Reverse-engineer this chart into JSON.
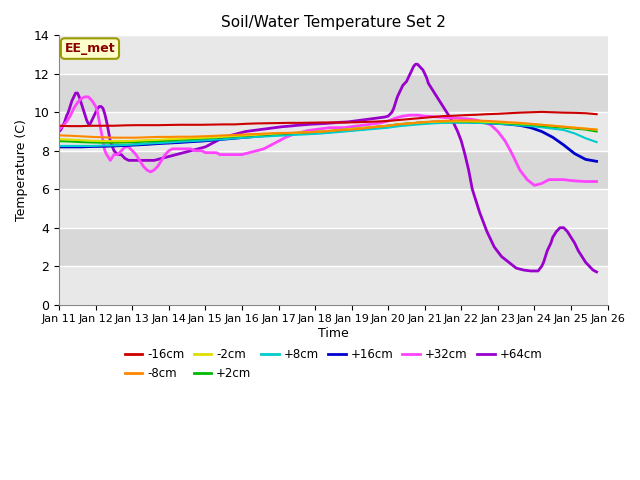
{
  "title": "Soil/Water Temperature Set 2",
  "xlabel": "Time",
  "ylabel": "Temperature (C)",
  "xlim": [
    0,
    15
  ],
  "ylim": [
    0,
    14
  ],
  "yticks": [
    0,
    2,
    4,
    6,
    8,
    10,
    12,
    14
  ],
  "xtick_labels": [
    "Jan 11",
    "Jan 12",
    "Jan 13",
    "Jan 14",
    "Jan 15",
    "Jan 16",
    "Jan 17",
    "Jan 18",
    "Jan 19",
    "Jan 20",
    "Jan 21",
    "Jan 22",
    "Jan 23",
    "Jan 24",
    "Jan 25",
    "Jan 26"
  ],
  "station_label": "EE_met",
  "legend": [
    {
      "label": "-16cm",
      "color": "#cc0000"
    },
    {
      "label": "-8cm",
      "color": "#ff8800"
    },
    {
      "label": "-2cm",
      "color": "#dddd00"
    },
    {
      "label": "+2cm",
      "color": "#00bb00"
    },
    {
      "label": "+8cm",
      "color": "#00cccc"
    },
    {
      "label": "+16cm",
      "color": "#0000cc"
    },
    {
      "label": "+32cm",
      "color": "#ff44ff"
    },
    {
      "label": "+64cm",
      "color": "#9900cc"
    }
  ],
  "series": {
    "m16cm": {
      "color": "#cc0000",
      "x": [
        0,
        0.3,
        0.6,
        0.9,
        1.2,
        1.5,
        1.8,
        2.1,
        2.4,
        2.7,
        3,
        3.3,
        3.6,
        3.9,
        4.2,
        4.5,
        4.8,
        5.1,
        5.4,
        5.7,
        6,
        6.3,
        6.6,
        6.9,
        7.2,
        7.5,
        7.8,
        8.1,
        8.4,
        8.7,
        9,
        9.3,
        9.6,
        9.9,
        10.2,
        10.5,
        10.8,
        11.1,
        11.4,
        11.7,
        12,
        12.3,
        12.6,
        12.9,
        13.2,
        13.5,
        13.8,
        14.1,
        14.4,
        14.7
      ],
      "y": [
        9.3,
        9.28,
        9.28,
        9.3,
        9.3,
        9.3,
        9.32,
        9.33,
        9.33,
        9.33,
        9.34,
        9.35,
        9.35,
        9.35,
        9.36,
        9.37,
        9.37,
        9.4,
        9.42,
        9.43,
        9.44,
        9.45,
        9.45,
        9.46,
        9.47,
        9.47,
        9.47,
        9.48,
        9.5,
        9.52,
        9.55,
        9.6,
        9.65,
        9.7,
        9.75,
        9.8,
        9.82,
        9.85,
        9.87,
        9.9,
        9.92,
        9.95,
        9.98,
        10.0,
        10.02,
        10.0,
        9.98,
        9.97,
        9.95,
        9.9
      ]
    },
    "m8cm": {
      "color": "#ff8800",
      "x": [
        0,
        0.3,
        0.6,
        0.9,
        1.2,
        1.5,
        1.8,
        2.1,
        2.4,
        2.7,
        3,
        3.3,
        3.6,
        3.9,
        4.2,
        4.5,
        4.8,
        5.1,
        5.4,
        5.7,
        6,
        6.3,
        6.6,
        6.9,
        7.2,
        7.5,
        7.8,
        8.1,
        8.4,
        8.7,
        9,
        9.3,
        9.6,
        9.9,
        10.2,
        10.5,
        10.8,
        11.1,
        11.4,
        11.7,
        12,
        12.3,
        12.6,
        12.9,
        13.2,
        13.5,
        13.8,
        14.1,
        14.4,
        14.7
      ],
      "y": [
        8.8,
        8.78,
        8.75,
        8.72,
        8.7,
        8.68,
        8.68,
        8.68,
        8.7,
        8.72,
        8.72,
        8.73,
        8.73,
        8.75,
        8.77,
        8.8,
        8.82,
        8.85,
        8.87,
        8.9,
        8.92,
        8.93,
        8.95,
        8.97,
        9.0,
        9.05,
        9.08,
        9.12,
        9.18,
        9.25,
        9.3,
        9.38,
        9.42,
        9.48,
        9.52,
        9.55,
        9.57,
        9.58,
        9.57,
        9.55,
        9.52,
        9.48,
        9.45,
        9.4,
        9.35,
        9.3,
        9.25,
        9.2,
        9.15,
        9.1
      ]
    },
    "m2cm": {
      "color": "#dddd00",
      "x": [
        0,
        0.3,
        0.6,
        0.9,
        1.2,
        1.5,
        1.8,
        2.1,
        2.4,
        2.7,
        3,
        3.3,
        3.6,
        3.9,
        4.2,
        4.5,
        4.8,
        5.1,
        5.4,
        5.7,
        6,
        6.3,
        6.6,
        6.9,
        7.2,
        7.5,
        7.8,
        8.1,
        8.4,
        8.7,
        9,
        9.3,
        9.6,
        9.9,
        10.2,
        10.5,
        10.8,
        11.1,
        11.4,
        11.7,
        12,
        12.3,
        12.6,
        12.9,
        13.2,
        13.5,
        13.8,
        14.1,
        14.4,
        14.7
      ],
      "y": [
        8.6,
        8.58,
        8.55,
        8.52,
        8.5,
        8.5,
        8.5,
        8.52,
        8.55,
        8.57,
        8.6,
        8.62,
        8.65,
        8.67,
        8.7,
        8.73,
        8.77,
        8.8,
        8.83,
        8.87,
        8.9,
        8.92,
        8.95,
        8.97,
        9.0,
        9.05,
        9.1,
        9.15,
        9.2,
        9.25,
        9.3,
        9.38,
        9.42,
        9.47,
        9.5,
        9.52,
        9.53,
        9.53,
        9.52,
        9.5,
        9.48,
        9.45,
        9.42,
        9.38,
        9.35,
        9.3,
        9.25,
        9.2,
        9.15,
        9.1
      ]
    },
    "p2cm": {
      "color": "#00bb00",
      "x": [
        0,
        0.3,
        0.6,
        0.9,
        1.2,
        1.5,
        1.8,
        2.1,
        2.4,
        2.7,
        3,
        3.3,
        3.6,
        3.9,
        4.2,
        4.5,
        4.8,
        5.1,
        5.4,
        5.7,
        6,
        6.3,
        6.6,
        6.9,
        7.2,
        7.5,
        7.8,
        8.1,
        8.4,
        8.7,
        9,
        9.3,
        9.6,
        9.9,
        10.2,
        10.5,
        10.8,
        11.1,
        11.4,
        11.7,
        12,
        12.3,
        12.6,
        12.9,
        13.2,
        13.5,
        13.8,
        14.1,
        14.4,
        14.7
      ],
      "y": [
        8.5,
        8.48,
        8.45,
        8.43,
        8.42,
        8.42,
        8.43,
        8.45,
        8.48,
        8.5,
        8.53,
        8.57,
        8.6,
        8.63,
        8.67,
        8.7,
        8.75,
        8.78,
        8.82,
        8.85,
        8.88,
        8.91,
        8.94,
        8.97,
        9.0,
        9.05,
        9.1,
        9.15,
        9.2,
        9.25,
        9.3,
        9.38,
        9.42,
        9.47,
        9.5,
        9.52,
        9.52,
        9.52,
        9.5,
        9.48,
        9.45,
        9.42,
        9.38,
        9.35,
        9.3,
        9.25,
        9.2,
        9.15,
        9.1,
        9.0
      ]
    },
    "p8cm": {
      "color": "#00cccc",
      "x": [
        0,
        0.3,
        0.6,
        0.9,
        1.2,
        1.5,
        1.8,
        2.1,
        2.4,
        2.7,
        3,
        3.3,
        3.6,
        3.9,
        4.2,
        4.5,
        4.8,
        5.1,
        5.4,
        5.7,
        6,
        6.3,
        6.6,
        6.9,
        7.2,
        7.5,
        7.8,
        8.1,
        8.4,
        8.7,
        9,
        9.3,
        9.6,
        9.9,
        10.2,
        10.5,
        10.8,
        11.1,
        11.4,
        11.7,
        12,
        12.3,
        12.6,
        12.9,
        13.2,
        13.5,
        13.8,
        14.1,
        14.4,
        14.7
      ],
      "y": [
        8.25,
        8.25,
        8.25,
        8.25,
        8.27,
        8.28,
        8.3,
        8.33,
        8.37,
        8.4,
        8.43,
        8.47,
        8.5,
        8.53,
        8.57,
        8.6,
        8.65,
        8.68,
        8.72,
        8.75,
        8.78,
        8.81,
        8.84,
        8.87,
        8.9,
        8.95,
        9.0,
        9.05,
        9.1,
        9.15,
        9.2,
        9.28,
        9.33,
        9.38,
        9.42,
        9.45,
        9.46,
        9.46,
        9.45,
        9.43,
        9.4,
        9.37,
        9.32,
        9.28,
        9.22,
        9.15,
        9.08,
        8.9,
        8.65,
        8.45
      ]
    },
    "p16cm": {
      "color": "#0000cc",
      "x": [
        0,
        0.3,
        0.6,
        0.9,
        1.2,
        1.5,
        1.8,
        2.1,
        2.4,
        2.7,
        3,
        3.3,
        3.6,
        3.9,
        4.2,
        4.5,
        4.8,
        5.1,
        5.4,
        5.7,
        6,
        6.3,
        6.6,
        6.9,
        7.2,
        7.5,
        7.8,
        8.1,
        8.4,
        8.7,
        9,
        9.3,
        9.6,
        9.9,
        10.2,
        10.5,
        10.8,
        11.1,
        11.4,
        11.7,
        12,
        12.3,
        12.6,
        12.9,
        13.2,
        13.5,
        13.8,
        14.1,
        14.4,
        14.7
      ],
      "y": [
        8.2,
        8.2,
        8.2,
        8.22,
        8.23,
        8.25,
        8.27,
        8.3,
        8.33,
        8.37,
        8.4,
        8.43,
        8.47,
        8.5,
        8.55,
        8.6,
        8.65,
        8.7,
        8.75,
        8.8,
        8.85,
        8.88,
        8.9,
        8.93,
        8.95,
        9.0,
        9.05,
        9.1,
        9.15,
        9.22,
        9.28,
        9.35,
        9.4,
        9.45,
        9.48,
        9.5,
        9.5,
        9.5,
        9.48,
        9.45,
        9.42,
        9.38,
        9.32,
        9.2,
        9.0,
        8.7,
        8.3,
        7.85,
        7.55,
        7.45
      ]
    },
    "p32cm": {
      "color": "#ff44ff",
      "x": [
        0,
        0.1,
        0.2,
        0.3,
        0.4,
        0.5,
        0.6,
        0.7,
        0.8,
        0.9,
        1.0,
        1.05,
        1.1,
        1.15,
        1.2,
        1.25,
        1.3,
        1.4,
        1.5,
        1.6,
        1.7,
        1.8,
        1.9,
        2.0,
        2.1,
        2.2,
        2.3,
        2.4,
        2.5,
        2.6,
        2.7,
        2.8,
        2.9,
        3.0,
        3.1,
        3.2,
        3.3,
        3.4,
        3.5,
        3.6,
        3.7,
        3.8,
        3.9,
        4.0,
        4.1,
        4.2,
        4.3,
        4.4,
        4.5,
        4.6,
        4.7,
        4.8,
        4.9,
        5.0,
        5.2,
        5.4,
        5.6,
        5.8,
        6.0,
        6.2,
        6.4,
        6.6,
        6.8,
        7.0,
        7.2,
        7.4,
        7.6,
        7.8,
        8.0,
        8.2,
        8.4,
        8.6,
        8.8,
        9.0,
        9.2,
        9.4,
        9.6,
        9.8,
        10.0,
        10.2,
        10.4,
        10.6,
        10.8,
        11.0,
        11.2,
        11.4,
        11.6,
        11.8,
        12.0,
        12.2,
        12.4,
        12.6,
        12.8,
        13.0,
        13.2,
        13.4,
        13.6,
        13.8,
        14.0,
        14.2,
        14.4,
        14.7
      ],
      "y": [
        9.1,
        9.3,
        9.5,
        9.8,
        10.2,
        10.5,
        10.7,
        10.8,
        10.8,
        10.6,
        10.3,
        10.0,
        9.5,
        9.0,
        8.5,
        8.0,
        7.8,
        7.5,
        7.8,
        7.8,
        8.0,
        8.2,
        8.2,
        8.0,
        7.8,
        7.5,
        7.2,
        7.0,
        6.9,
        7.0,
        7.2,
        7.5,
        7.8,
        8.0,
        8.1,
        8.1,
        8.1,
        8.1,
        8.1,
        8.1,
        8.0,
        8.0,
        8.0,
        7.9,
        7.9,
        7.9,
        7.9,
        7.8,
        7.8,
        7.8,
        7.8,
        7.8,
        7.8,
        7.8,
        7.9,
        8.0,
        8.1,
        8.3,
        8.5,
        8.7,
        8.85,
        8.95,
        9.05,
        9.1,
        9.15,
        9.2,
        9.2,
        9.2,
        9.25,
        9.3,
        9.35,
        9.4,
        9.45,
        9.55,
        9.7,
        9.8,
        9.85,
        9.85,
        9.8,
        9.78,
        9.75,
        9.72,
        9.7,
        9.68,
        9.65,
        9.6,
        9.5,
        9.35,
        9.0,
        8.5,
        7.8,
        7.0,
        6.5,
        6.2,
        6.3,
        6.5,
        6.5,
        6.5,
        6.45,
        6.42,
        6.4,
        6.4
      ]
    },
    "p64cm": {
      "color": "#9900cc",
      "x": [
        0,
        0.05,
        0.1,
        0.15,
        0.2,
        0.25,
        0.3,
        0.35,
        0.4,
        0.45,
        0.5,
        0.55,
        0.6,
        0.65,
        0.7,
        0.75,
        0.8,
        0.85,
        0.9,
        0.95,
        1.0,
        1.05,
        1.1,
        1.15,
        1.2,
        1.25,
        1.3,
        1.35,
        1.4,
        1.5,
        1.6,
        1.7,
        1.8,
        1.9,
        2.0,
        2.1,
        2.2,
        2.3,
        2.4,
        2.5,
        2.6,
        2.7,
        2.8,
        2.9,
        3.0,
        3.1,
        3.2,
        3.3,
        3.4,
        3.5,
        3.6,
        3.7,
        3.8,
        3.9,
        4.0,
        4.1,
        4.2,
        4.3,
        4.4,
        4.5,
        4.7,
        4.9,
        5.1,
        5.3,
        5.5,
        5.7,
        5.9,
        6.1,
        6.3,
        6.5,
        6.7,
        6.9,
        7.1,
        7.3,
        7.5,
        7.7,
        7.9,
        8.1,
        8.3,
        8.5,
        8.7,
        8.9,
        9.0,
        9.05,
        9.1,
        9.15,
        9.2,
        9.25,
        9.3,
        9.35,
        9.4,
        9.45,
        9.5,
        9.55,
        9.6,
        9.65,
        9.7,
        9.75,
        9.8,
        9.85,
        9.9,
        9.95,
        10.0,
        10.05,
        10.1,
        10.2,
        10.3,
        10.4,
        10.5,
        10.6,
        10.7,
        10.8,
        10.9,
        11.0,
        11.1,
        11.2,
        11.3,
        11.5,
        11.7,
        11.9,
        12.1,
        12.3,
        12.5,
        12.7,
        12.9,
        13.1,
        13.2,
        13.25,
        13.3,
        13.35,
        13.4,
        13.45,
        13.5,
        13.6,
        13.7,
        13.8,
        13.9,
        14.0,
        14.1,
        14.2,
        14.3,
        14.4,
        14.5,
        14.6,
        14.7
      ],
      "y": [
        9.0,
        9.1,
        9.3,
        9.5,
        9.8,
        10.0,
        10.3,
        10.6,
        10.8,
        11.0,
        11.0,
        10.8,
        10.5,
        10.2,
        9.9,
        9.6,
        9.4,
        9.4,
        9.6,
        9.8,
        10.0,
        10.2,
        10.3,
        10.3,
        10.2,
        9.9,
        9.5,
        9.0,
        8.5,
        8.0,
        7.8,
        7.8,
        7.6,
        7.5,
        7.5,
        7.5,
        7.5,
        7.5,
        7.5,
        7.5,
        7.5,
        7.55,
        7.6,
        7.65,
        7.7,
        7.75,
        7.8,
        7.85,
        7.9,
        7.95,
        8.0,
        8.05,
        8.1,
        8.15,
        8.2,
        8.3,
        8.4,
        8.5,
        8.6,
        8.7,
        8.8,
        8.9,
        9.0,
        9.05,
        9.1,
        9.15,
        9.2,
        9.25,
        9.28,
        9.32,
        9.35,
        9.38,
        9.4,
        9.42,
        9.45,
        9.48,
        9.5,
        9.55,
        9.6,
        9.65,
        9.7,
        9.75,
        9.8,
        9.9,
        10.0,
        10.2,
        10.5,
        10.8,
        11.0,
        11.2,
        11.4,
        11.5,
        11.6,
        11.8,
        12.0,
        12.2,
        12.4,
        12.5,
        12.5,
        12.4,
        12.3,
        12.2,
        12.0,
        11.8,
        11.5,
        11.2,
        10.9,
        10.6,
        10.3,
        10.0,
        9.7,
        9.4,
        9.0,
        8.5,
        7.8,
        7.0,
        6.0,
        4.8,
        3.8,
        3.0,
        2.5,
        2.2,
        1.9,
        1.8,
        1.75,
        1.75,
        2.0,
        2.2,
        2.5,
        2.8,
        3.0,
        3.2,
        3.5,
        3.8,
        4.0,
        4.0,
        3.8,
        3.5,
        3.2,
        2.8,
        2.5,
        2.2,
        2.0,
        1.8,
        1.7
      ]
    }
  }
}
